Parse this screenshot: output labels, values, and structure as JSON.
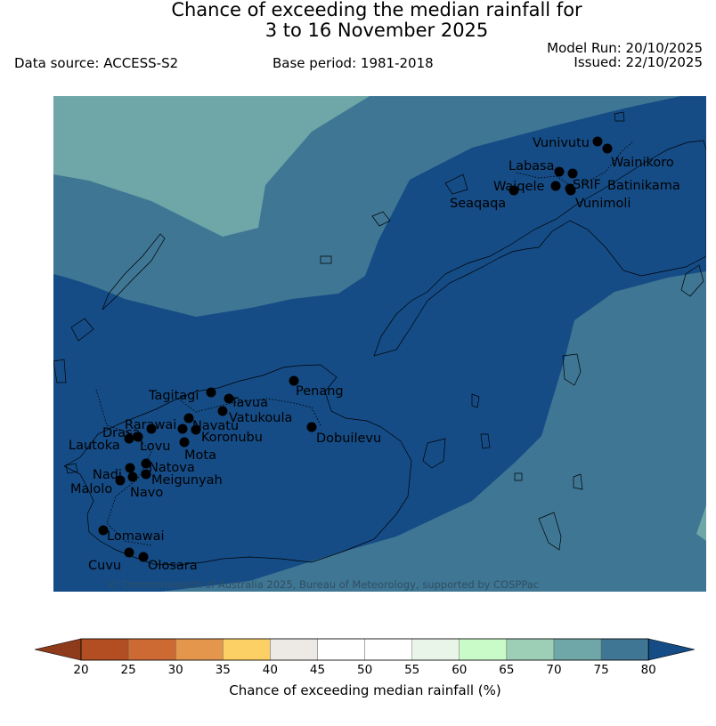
{
  "header": {
    "title_line1": "Chance of exceeding the median rainfall for",
    "title_line2": "3 to 16 November 2025",
    "data_source": "Data source: ACCESS-S2",
    "base_period": "Base period: 1981-2018",
    "model_run": "Model Run: 20/10/2025",
    "issued": "Issued: 22/10/2025"
  },
  "map": {
    "copyright": "© Commonwealth of Australia 2025, Bureau of Meteorology, supported by COSPPac",
    "stations": [
      {
        "name": "Vunivutu"
      },
      {
        "name": "Wainikoro"
      },
      {
        "name": "Labasa"
      },
      {
        "name": "Waiqele"
      },
      {
        "name": "SRIF"
      },
      {
        "name": "Batinikama"
      },
      {
        "name": "Seaqaqa"
      },
      {
        "name": "Vunimoli"
      },
      {
        "name": "Tagitagi"
      },
      {
        "name": "Tavua"
      },
      {
        "name": "Penang"
      },
      {
        "name": "Vatukoula"
      },
      {
        "name": "Rarawai"
      },
      {
        "name": "Navatu"
      },
      {
        "name": "Drasa"
      },
      {
        "name": "Koronubu"
      },
      {
        "name": "Lautoka"
      },
      {
        "name": "Lovu"
      },
      {
        "name": "Dobuilevu"
      },
      {
        "name": "Mota"
      },
      {
        "name": "Natova"
      },
      {
        "name": "Nadi"
      },
      {
        "name": "Meigunyah"
      },
      {
        "name": "Malolo"
      },
      {
        "name": "Navo"
      },
      {
        "name": "Lomawai"
      },
      {
        "name": "Cuvu"
      },
      {
        "name": "Olosara"
      }
    ]
  },
  "legend": {
    "label": "Chance of exceeding median rainfall (%)",
    "ticks": [
      "20",
      "25",
      "30",
      "35",
      "40",
      "45",
      "50",
      "55",
      "60",
      "65",
      "70",
      "75",
      "80"
    ],
    "colors": [
      "#b34e22",
      "#cd6a33",
      "#e4964c",
      "#fdd066",
      "#ede9e5",
      "#ffffff",
      "#ffffff",
      "#eaf5ea",
      "#c9fbc9",
      "#9ccfb6",
      "#6fa6a8",
      "#3f7694",
      "#154c86"
    ]
  }
}
